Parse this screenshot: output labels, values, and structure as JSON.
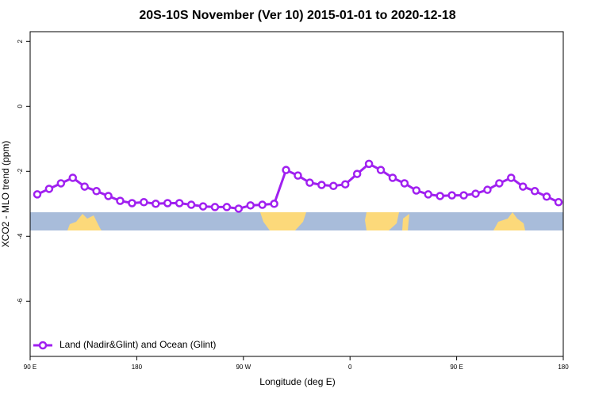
{
  "chart_data": {
    "type": "line",
    "title": "20S-10S November (Ver 10)   2015-01-01 to 2020-12-18",
    "x_label": "Longitude (deg E)",
    "y_label": "XCO2 - MLO trend (ppm)",
    "x": [
      96,
      106,
      116,
      126,
      136,
      146,
      156,
      166,
      176,
      186,
      196,
      206,
      216,
      226,
      236,
      246,
      256,
      266,
      276,
      286,
      296,
      306,
      316,
      326,
      336,
      346,
      356,
      366,
      376,
      386,
      396,
      406,
      416,
      426,
      436,
      446,
      456,
      466,
      476,
      486,
      496,
      506,
      516,
      526,
      536
    ],
    "series": [
      {
        "name": "Land (Nadir&Glint) and Ocean (Glint)",
        "color": "#a020f0",
        "values": [
          -2.71,
          -2.54,
          -2.37,
          -2.2,
          -2.47,
          -2.61,
          -2.76,
          -2.91,
          -2.98,
          -2.95,
          -3.0,
          -2.98,
          -2.98,
          -3.03,
          -3.08,
          -3.1,
          -3.1,
          -3.15,
          -3.05,
          -3.03,
          -3.0,
          -1.96,
          -2.13,
          -2.35,
          -2.42,
          -2.45,
          -2.4,
          -2.08,
          -1.77,
          -1.96,
          -2.2,
          -2.37,
          -2.59,
          -2.71,
          -2.76,
          -2.74,
          -2.74,
          -2.69,
          -2.57,
          -2.37,
          -2.2,
          -2.47,
          -2.61,
          -2.78,
          -2.95
        ]
      }
    ],
    "xlim": [
      90,
      540
    ],
    "xticks": [
      {
        "value": 90,
        "label": "90 E"
      },
      {
        "value": 180,
        "label": "180"
      },
      {
        "value": 270,
        "label": "90 W"
      },
      {
        "value": 360,
        "label": "0"
      },
      {
        "value": 450,
        "label": "90 E"
      },
      {
        "value": 540,
        "label": "180"
      }
    ],
    "ylim": [
      -7.7,
      2.3
    ],
    "yticks": [
      -6,
      -4,
      -2,
      0,
      2
    ],
    "legend": "bottom-left"
  }
}
